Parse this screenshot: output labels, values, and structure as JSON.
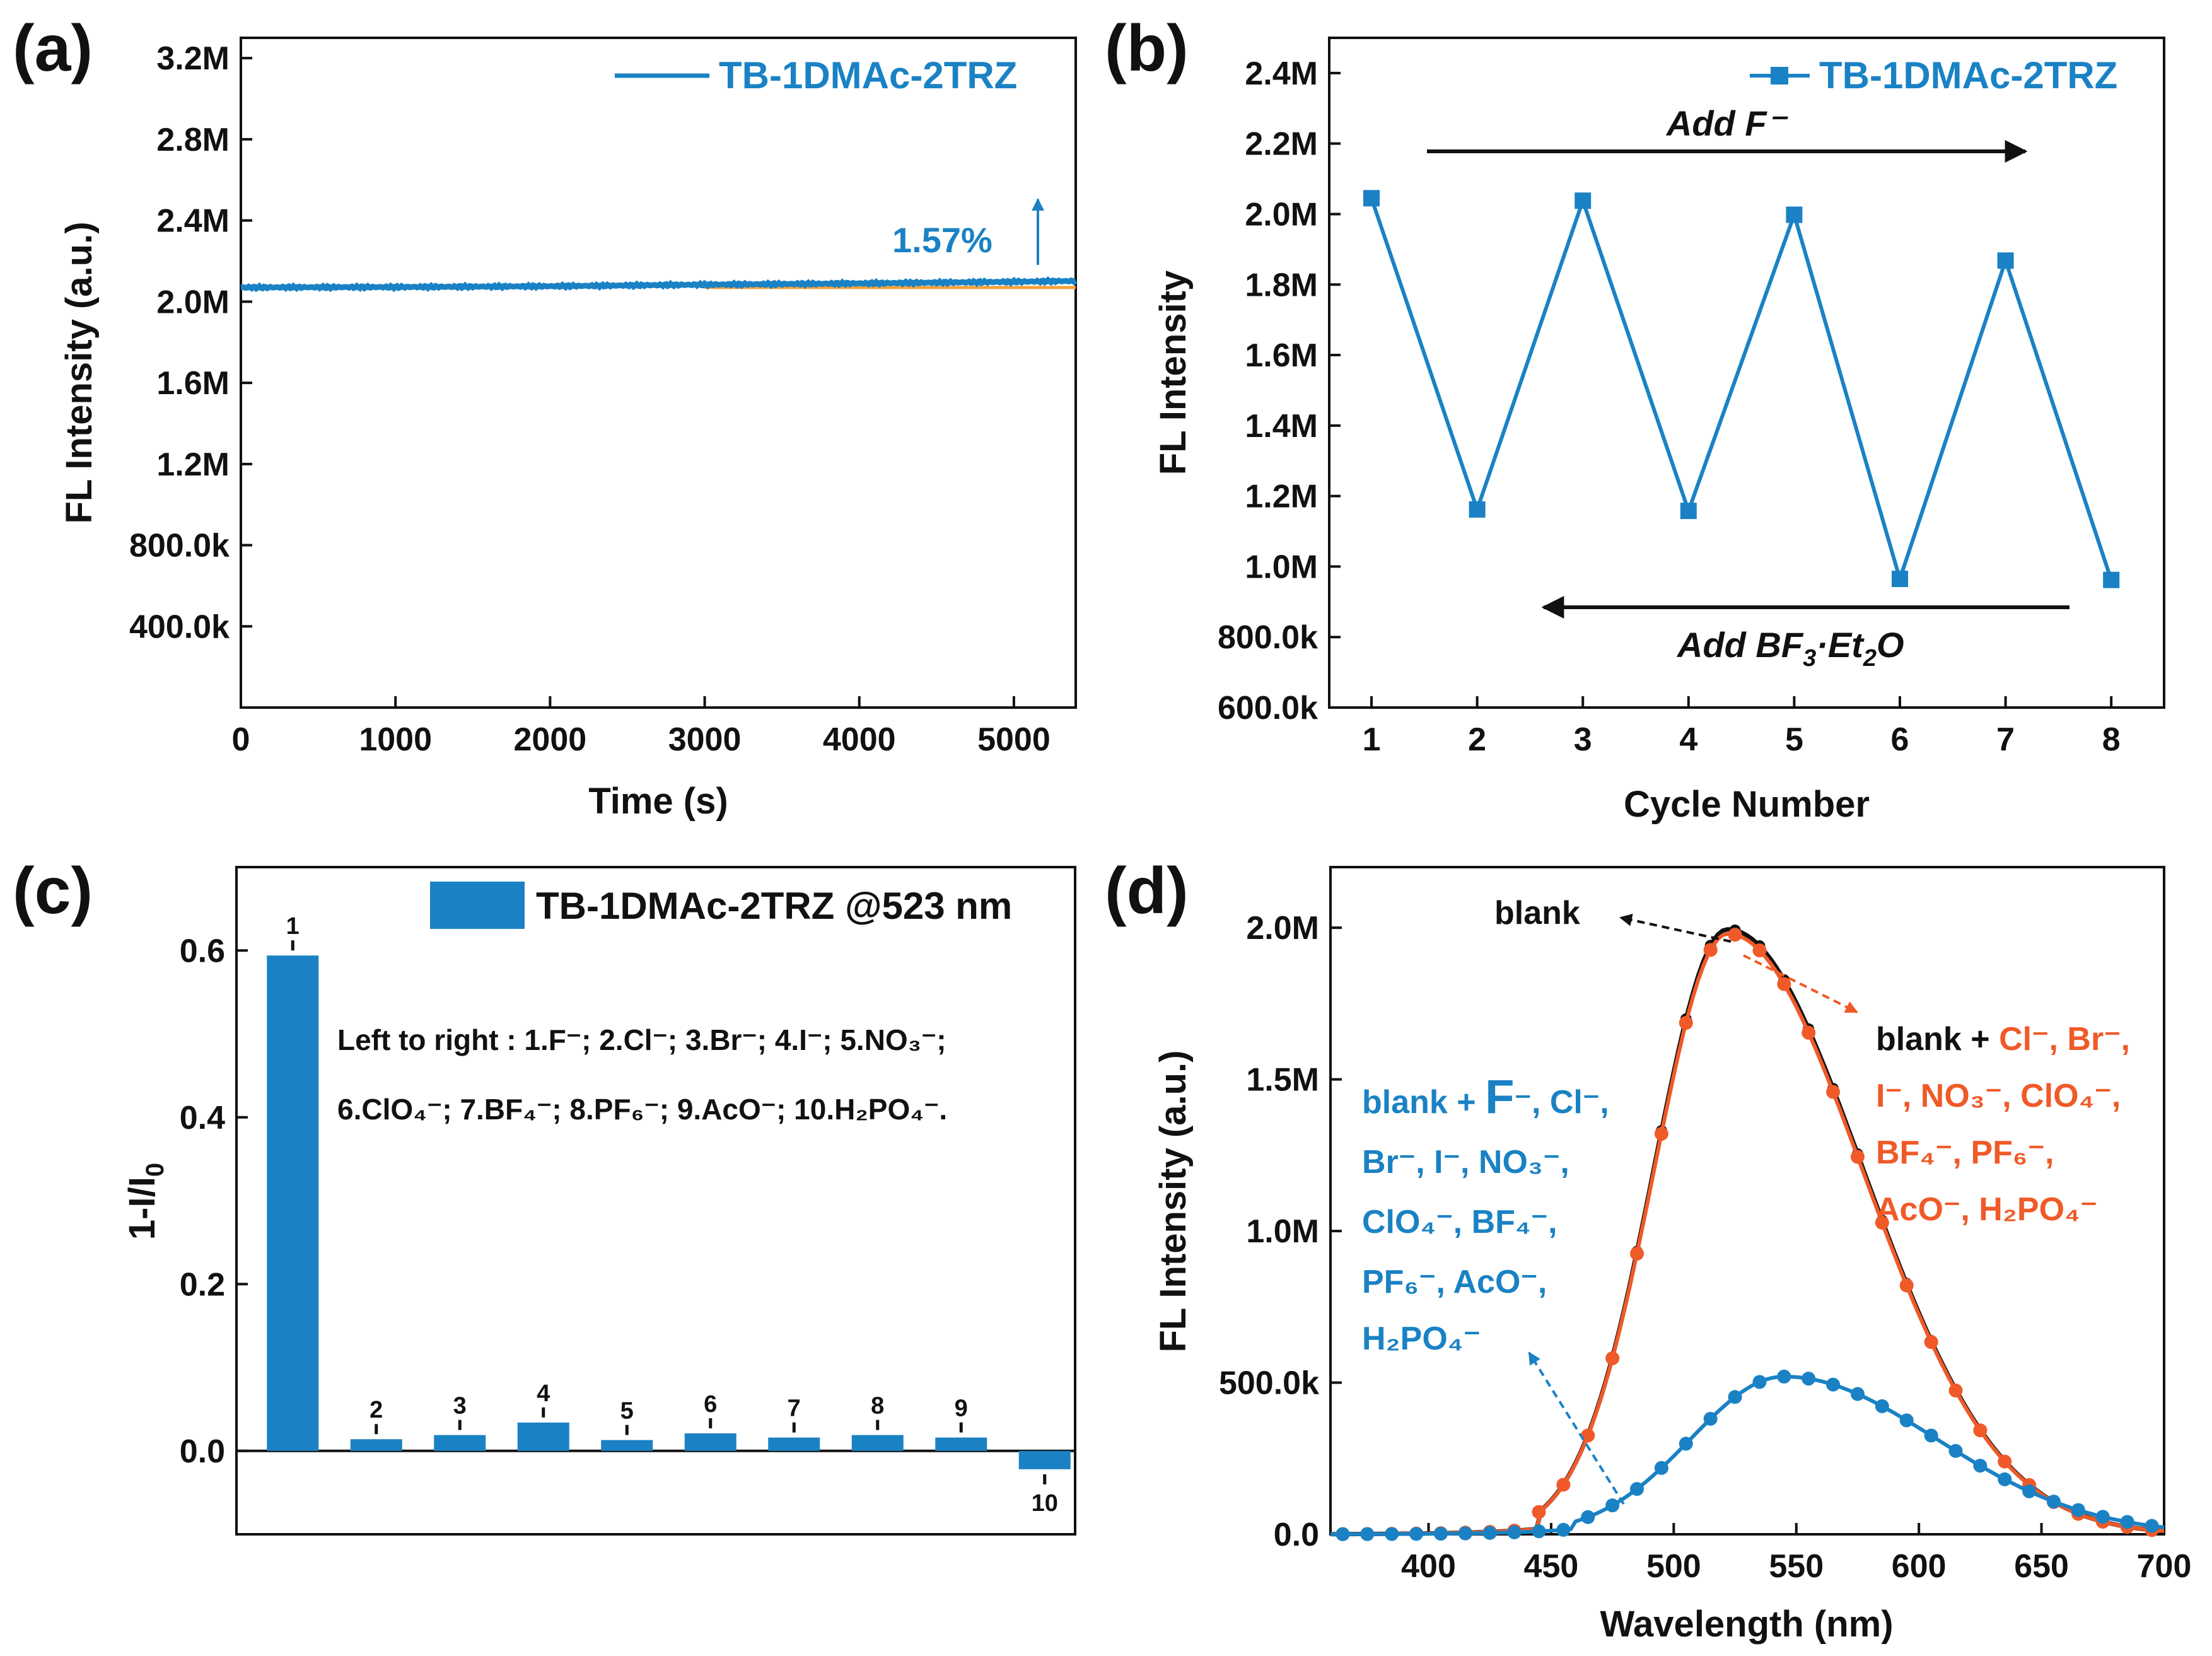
{
  "colors": {
    "blue": "#1a82c4",
    "orange": "#f05a28",
    "black": "#111111",
    "orange_line": "#f7a13a"
  },
  "panels": {
    "a": {
      "label": "(a)"
    },
    "b": {
      "label": "(b)"
    },
    "c": {
      "label": "(c)"
    },
    "d": {
      "label": "(d)"
    }
  },
  "chart_data": [
    {
      "panel": "a",
      "type": "line",
      "xlabel": "Time (s)",
      "ylabel": "FL Intensity (a.u.)",
      "xlim": [
        0,
        5400
      ],
      "ylim": [
        0,
        3300000
      ],
      "xticks": [
        {
          "v": 0,
          "t": "0"
        },
        {
          "v": 1000,
          "t": "1000"
        },
        {
          "v": 2000,
          "t": "2000"
        },
        {
          "v": 3000,
          "t": "3000"
        },
        {
          "v": 4000,
          "t": "4000"
        },
        {
          "v": 5000,
          "t": "5000"
        }
      ],
      "yticks": [
        {
          "v": 400000,
          "t": "400.0k"
        },
        {
          "v": 800000,
          "t": "800.0k"
        },
        {
          "v": 1200000,
          "t": "1.2M"
        },
        {
          "v": 1600000,
          "t": "1.6M"
        },
        {
          "v": 2000000,
          "t": "2.0M"
        },
        {
          "v": 2400000,
          "t": "2.4M"
        },
        {
          "v": 2800000,
          "t": "2.8M"
        },
        {
          "v": 3200000,
          "t": "3.2M"
        }
      ],
      "series": [
        {
          "name": "TB-1DMAc-2TRZ",
          "x": [
            0,
            1000,
            2000,
            3000,
            4000,
            5000,
            5400
          ],
          "values": [
            2070000,
            2072000,
            2076000,
            2084000,
            2090000,
            2098000,
            2102000
          ]
        }
      ],
      "baseline": 2070000,
      "annotation": "1.57%"
    },
    {
      "panel": "b",
      "type": "line",
      "xlabel": "Cycle Number",
      "ylabel": "FL Intensity",
      "xlim": [
        0.6,
        8.5
      ],
      "ylim": [
        600000,
        2500000
      ],
      "xticks": [
        {
          "v": 1,
          "t": "1"
        },
        {
          "v": 2,
          "t": "2"
        },
        {
          "v": 3,
          "t": "3"
        },
        {
          "v": 4,
          "t": "4"
        },
        {
          "v": 5,
          "t": "5"
        },
        {
          "v": 6,
          "t": "6"
        },
        {
          "v": 7,
          "t": "7"
        },
        {
          "v": 8,
          "t": "8"
        }
      ],
      "yticks": [
        {
          "v": 600000,
          "t": "600.0k"
        },
        {
          "v": 800000,
          "t": "800.0k"
        },
        {
          "v": 1000000,
          "t": "1.0M"
        },
        {
          "v": 1200000,
          "t": "1.2M"
        },
        {
          "v": 1400000,
          "t": "1.4M"
        },
        {
          "v": 1600000,
          "t": "1.6M"
        },
        {
          "v": 1800000,
          "t": "1.8M"
        },
        {
          "v": 2000000,
          "t": "2.0M"
        },
        {
          "v": 2200000,
          "t": "2.2M"
        },
        {
          "v": 2400000,
          "t": "2.4M"
        }
      ],
      "series": [
        {
          "name": "TB-1DMAc-2TRZ",
          "x": [
            1,
            2,
            3,
            4,
            5,
            6,
            7,
            8
          ],
          "values": [
            2045000,
            1162000,
            2038000,
            1158000,
            1998000,
            965000,
            1868000,
            962000
          ]
        }
      ],
      "arrow_top": "Add F⁻",
      "arrow_bottom_main": "Add BF",
      "arrow_bottom_sub1": "3",
      "arrow_bottom_mid": "·Et",
      "arrow_bottom_sub2": "2",
      "arrow_bottom_end": "O"
    },
    {
      "panel": "c",
      "type": "bar",
      "xlabel": "",
      "ylabel_main": "1-I/I",
      "ylabel_sub": "0",
      "ylim": [
        -0.1,
        0.7
      ],
      "yticks": [
        {
          "v": 0,
          "t": "0.0"
        },
        {
          "v": 0.2,
          "t": "0.2"
        },
        {
          "v": 0.4,
          "t": "0.4"
        },
        {
          "v": 0.6,
          "t": "0.6"
        }
      ],
      "categories": [
        "1",
        "2",
        "3",
        "4",
        "5",
        "6",
        "7",
        "8",
        "9",
        "10"
      ],
      "values": [
        0.594,
        0.014,
        0.019,
        0.034,
        0.013,
        0.021,
        0.016,
        0.019,
        0.016,
        -0.022
      ],
      "legend": "TB-1DMAc-2TRZ @523 nm",
      "note_line1": "Left to right : 1.F⁻; 2.Cl⁻; 3.Br⁻; 4.I⁻; 5.NO₃⁻;",
      "note_line2": "6.ClO₄⁻; 7.BF₄⁻; 8.PF₆⁻; 9.AcO⁻; 10.H₂PO₄⁻."
    },
    {
      "panel": "d",
      "type": "line",
      "xlabel": "Wavelength (nm)",
      "ylabel": "FL Intensity (a.u.)",
      "xlim": [
        360,
        700
      ],
      "ylim": [
        0,
        2200000
      ],
      "xticks": [
        {
          "v": 400,
          "t": "400"
        },
        {
          "v": 450,
          "t": "450"
        },
        {
          "v": 500,
          "t": "500"
        },
        {
          "v": 550,
          "t": "550"
        },
        {
          "v": 600,
          "t": "600"
        },
        {
          "v": 650,
          "t": "650"
        },
        {
          "v": 700,
          "t": "700"
        }
      ],
      "yticks": [
        {
          "v": 0,
          "t": "0.0"
        },
        {
          "v": 500000,
          "t": "500.0k"
        },
        {
          "v": 1000000,
          "t": "1.0M"
        },
        {
          "v": 1500000,
          "t": "1.5M"
        },
        {
          "v": 2000000,
          "t": "2.0M"
        }
      ],
      "series": [
        {
          "name": "blank",
          "peak_nm": 522,
          "peak": 1995000,
          "onset_nm": 445
        },
        {
          "name": "blank + Cl⁻, Br⁻, I⁻, NO₃⁻, ClO₄⁻, BF₄⁻, PF₆⁻, AcO⁻, H₂PO₄⁻",
          "peak_nm": 522,
          "peak": 1980000,
          "onset_nm": 445
        },
        {
          "name": "blank + F⁻, Cl⁻, Br⁻, I⁻, NO₃⁻, ClO₄⁻, BF₄⁻, PF₆⁻, AcO⁻, H₂PO₄⁻",
          "peak_nm": 545,
          "peak": 520000,
          "onset_nm": 460
        }
      ],
      "ann_blank": "blank",
      "ann_orange_l1_prefix": "blank + ",
      "ann_orange_l1": "Cl⁻, Br⁻,",
      "ann_orange_l2": "I⁻, NO₃⁻, ClO₄⁻,",
      "ann_orange_l3": "BF₄⁻, PF₆⁻,",
      "ann_orange_l4": "AcO⁻, H₂PO₄⁻",
      "ann_blue_l1_prefix": "blank + ",
      "ann_blue_l1_F": "F",
      "ann_blue_l1_rest": "⁻, Cl⁻,",
      "ann_blue_l2": "Br⁻, I⁻, NO₃⁻,",
      "ann_blue_l3": "ClO₄⁻, BF₄⁻,",
      "ann_blue_l4": "PF₆⁻, AcO⁻,",
      "ann_blue_l5": "H₂PO₄⁻"
    }
  ]
}
